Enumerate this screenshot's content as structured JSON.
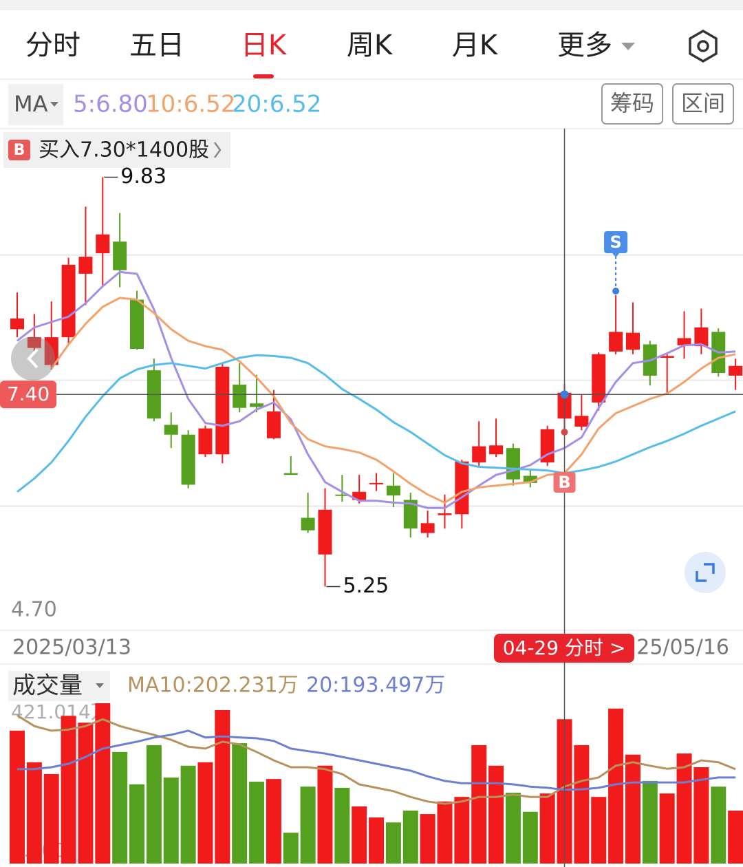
{
  "tabs": [
    "分时",
    "五日",
    "日K",
    "周K",
    "月K",
    "更多"
  ],
  "active_tab": 2,
  "indicator": "MA",
  "buttons": [
    "筹码",
    "区间"
  ],
  "trade": {
    "badge": "B",
    "text": "买入7.30*1400股"
  },
  "trade_markers": [
    "S",
    "B"
  ],
  "chart_data": [
    {
      "type": "candlestick",
      "categories": [
        "2025/03/13",
        null,
        null,
        null,
        null,
        null,
        null,
        null,
        null,
        null,
        null,
        null,
        null,
        null,
        null,
        null,
        null,
        null,
        null,
        null,
        null,
        null,
        null,
        null,
        null,
        null,
        null,
        null,
        null,
        null,
        null,
        null,
        null,
        null,
        null,
        null,
        null,
        null,
        null,
        null,
        null,
        null,
        "25/05/16"
      ],
      "open": [
        8.13,
        7.92,
        7.73,
        8.04,
        8.75,
        8.98,
        9.11,
        8.46,
        7.67,
        7.06,
        6.95,
        6.73,
        6.73,
        7.51,
        7.3,
        6.91,
        6.52,
        6.02,
        5.61,
        6.28,
        6.22,
        6.4,
        6.38,
        6.22,
        5.85,
        6.05,
        6.06,
        6.64,
        6.73,
        6.8,
        6.49,
        6.64,
        7.13,
        7.04,
        7.31,
        7.88,
        7.9,
        7.96,
        7.81,
        7.95,
        7.94,
        8.1,
        7.61
      ],
      "high": [
        8.54,
        8.3,
        8.44,
        8.93,
        9.5,
        9.83,
        9.43,
        8.56,
        7.8,
        7.2,
        7.0,
        7.05,
        7.75,
        7.75,
        7.62,
        7.45,
        6.71,
        6.3,
        6.35,
        6.5,
        6.5,
        6.52,
        6.52,
        6.3,
        6.1,
        6.28,
        6.67,
        7.1,
        7.13,
        6.85,
        6.55,
        7.05,
        7.52,
        7.4,
        7.87,
        8.51,
        8.43,
        8.0,
        7.86,
        8.33,
        8.36,
        8.14,
        7.8
      ],
      "low": [
        8.04,
        7.85,
        7.68,
        7.95,
        8.4,
        8.6,
        8.6,
        7.9,
        7.1,
        6.8,
        6.35,
        6.7,
        6.63,
        7.2,
        7.2,
        6.9,
        6.5,
        5.85,
        5.25,
        6.2,
        6.18,
        6.32,
        6.14,
        5.8,
        5.8,
        5.9,
        5.9,
        6.6,
        6.7,
        6.38,
        6.36,
        6.6,
        7.0,
        7.0,
        7.22,
        7.85,
        7.85,
        7.5,
        7.4,
        7.8,
        7.85,
        7.6,
        7.45
      ],
      "close": [
        8.25,
        8.04,
        8.04,
        8.85,
        8.94,
        9.19,
        8.79,
        7.91,
        7.13,
        6.95,
        6.39,
        7.02,
        7.71,
        7.25,
        7.26,
        7.21,
        6.5,
        5.88,
        6.11,
        6.27,
        6.31,
        6.41,
        6.27,
        5.9,
        5.96,
        6.07,
        6.65,
        6.82,
        6.83,
        6.45,
        6.41,
        7.01,
        7.42,
        7.16,
        7.85,
        8.1,
        8.09,
        7.61,
        7.83,
        8.03,
        8.15,
        7.64,
        7.72
      ],
      "up_color": "#f21b1b",
      "down_color": "#55a01e",
      "series": [
        {
          "name": "5:6.80",
          "color": "#a58ee6",
          "values": [
            8.0,
            8.15,
            8.21,
            8.27,
            8.42,
            8.61,
            8.77,
            8.75,
            8.35,
            7.81,
            7.35,
            7.08,
            7.05,
            7.1,
            7.23,
            7.31,
            7.12,
            6.73,
            6.42,
            6.31,
            6.21,
            6.21,
            6.19,
            6.18,
            6.13,
            6.13,
            6.25,
            6.38,
            6.5,
            6.55,
            6.61,
            6.73,
            6.8,
            6.92,
            7.25,
            7.54,
            7.75,
            7.78,
            7.86,
            7.95,
            7.96,
            7.87,
            7.88
          ]
        },
        {
          "name": "10:6.52",
          "color": "#f2a36b",
          "values": [
            null,
            null,
            7.69,
            7.96,
            8.19,
            8.38,
            8.48,
            8.46,
            8.31,
            8.13,
            8.0,
            7.94,
            7.9,
            7.77,
            7.59,
            7.38,
            7.08,
            6.9,
            6.82,
            6.79,
            6.75,
            6.67,
            6.54,
            6.4,
            6.28,
            6.19,
            6.31,
            6.36,
            6.38,
            6.4,
            6.42,
            6.5,
            6.52,
            6.73,
            7.02,
            7.19,
            7.27,
            7.35,
            7.41,
            7.54,
            7.69,
            7.81,
            7.85
          ]
        },
        {
          "name": "20:6.52",
          "color": "#56bdea",
          "values": [
            6.31,
            6.46,
            6.64,
            6.88,
            7.15,
            7.38,
            7.58,
            7.68,
            7.73,
            7.75,
            7.72,
            7.69,
            7.75,
            7.81,
            7.84,
            7.83,
            7.81,
            7.75,
            7.62,
            7.46,
            7.35,
            7.23,
            7.09,
            6.98,
            6.85,
            6.72,
            6.63,
            6.59,
            6.58,
            6.57,
            6.56,
            6.55,
            6.52,
            6.55,
            6.59,
            6.65,
            6.73,
            6.81,
            6.88,
            6.96,
            7.05,
            7.13,
            7.21
          ]
        }
      ],
      "ylim": [
        4.7,
        10.35
      ],
      "yticks": [
        {
          "value": 4.7,
          "label": "4.70"
        }
      ],
      "gridlines": [
        8.96,
        7.56,
        6.15
      ],
      "crosshair": {
        "value": 7.4,
        "label": "7.40",
        "date_label": "04-29 分时 >"
      }
    },
    {
      "type": "bar",
      "title": "成交量",
      "values": [
        349,
        266,
        235,
        388,
        370,
        421.014,
        293,
        208,
        311,
        226,
        257,
        266,
        403,
        316,
        215,
        222,
        81,
        202,
        257,
        199,
        150,
        121,
        108,
        139,
        130,
        163,
        175,
        311,
        257,
        186,
        136,
        184,
        379,
        311,
        175,
        407,
        286,
        217,
        184,
        289,
        253,
        202,
        139
      ],
      "series": [
        {
          "name": "MA10:202.231万",
          "color": "#b8925e",
          "values": [
            389,
            361,
            349,
            352,
            361,
            379,
            361,
            349,
            338,
            325,
            307,
            302,
            320,
            313,
            293,
            271,
            253,
            253,
            248,
            235,
            208,
            199,
            190,
            175,
            163,
            157,
            163,
            175,
            175,
            181,
            175,
            175,
            202.231,
            217,
            226,
            257,
            266,
            257,
            249,
            253,
            271,
            266,
            248
          ]
        },
        {
          "name": "20:193.497万",
          "color": "#6c80d2",
          "values": [
            248,
            248,
            253,
            262,
            280,
            302,
            311,
            320,
            331,
            338,
            349,
            331,
            334,
            331,
            329,
            322,
            302,
            295,
            289,
            280,
            271,
            262,
            253,
            244,
            229,
            217,
            211,
            211,
            211,
            208,
            202,
            199,
            193.497,
            195,
            199,
            208,
            213,
            213,
            213,
            213,
            220,
            226,
            226
          ]
        }
      ],
      "ylim": [
        0,
        421.014
      ],
      "yticks": [
        {
          "value": 0,
          "label": "0.000"
        },
        {
          "value": 421.014,
          "label": "421.014万"
        }
      ]
    }
  ]
}
